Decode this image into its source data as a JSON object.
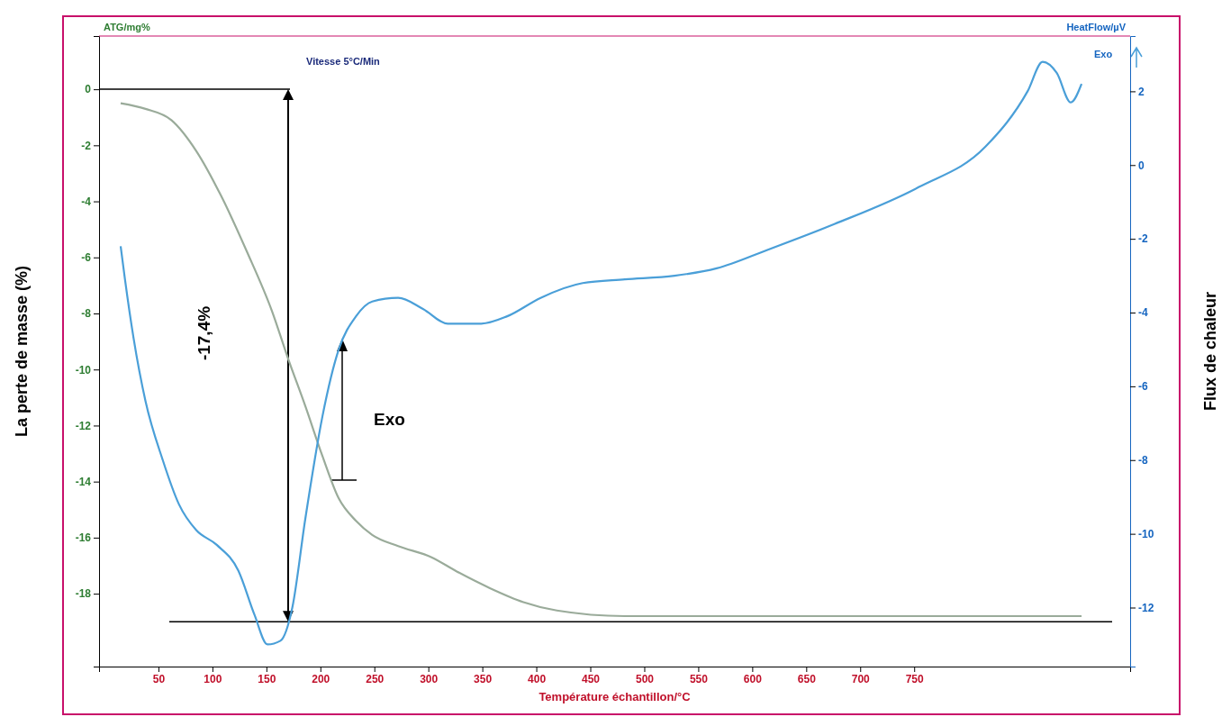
{
  "chart_data": {
    "type": "line",
    "xlabel": "Température échantillon/°C",
    "ylabel": "La perte de masse (%)",
    "y2label": "Flux de chaleur",
    "annotations": [
      "ATG/mg%",
      "HeatFlow/µV",
      "Vitesse 5°C/Min",
      "-17,4%",
      "Exo",
      "Exo"
    ],
    "xlim": [
      -5,
      950
    ],
    "xticks": [
      50,
      100,
      150,
      200,
      250,
      300,
      350,
      400,
      450,
      500,
      550,
      600,
      650,
      700,
      750
    ],
    "ylim": [
      -20.6,
      1.9
    ],
    "yticks": [
      0,
      -2,
      -4,
      -6,
      -8,
      -10,
      -12,
      -14,
      -16,
      -18
    ],
    "y2lim": [
      -13.6,
      3.5
    ],
    "y2ticks": [
      2,
      0,
      -2,
      -4,
      -6,
      -8,
      -10,
      -12
    ],
    "grid": false,
    "ref_lines": [
      {
        "axis": "y",
        "value": 0,
        "color": "#000000"
      },
      {
        "axis": "y",
        "value": -19,
        "color": "#000000"
      }
    ],
    "series": [
      {
        "color": "#9aab9a",
        "x": [
          15,
          38,
          62,
          85,
          108,
          132,
          155,
          170,
          186,
          202,
          217,
          233,
          248,
          272,
          303,
          326,
          357,
          388,
          419,
          482,
          637,
          905
        ],
        "values": [
          -0.5,
          -0.7,
          -1.1,
          -2.2,
          -3.8,
          -5.8,
          -7.9,
          -9.6,
          -11.3,
          -13.1,
          -14.6,
          -15.4,
          -15.9,
          -16.3,
          -16.7,
          -17.2,
          -17.8,
          -18.3,
          -18.6,
          -18.8,
          -18.8,
          -18.8
        ]
      },
      {
        "color": "#4a9fd8",
        "axis": "y2",
        "x": [
          15,
          19,
          27,
          38,
          54,
          69,
          85,
          104,
          124,
          139,
          151,
          163,
          174,
          186,
          202,
          217,
          233,
          248,
          272,
          295,
          318,
          349,
          373,
          404,
          443,
          482,
          528,
          567,
          614,
          676,
          754,
          816,
          855,
          869,
          882,
          895,
          905
        ],
        "values": [
          -2.2,
          -3.1,
          -4.7,
          -6.4,
          -8.0,
          -9.2,
          -9.9,
          -10.3,
          -11.0,
          -12.2,
          -13.0,
          -12.9,
          -12.0,
          -9.6,
          -6.8,
          -5.0,
          -4.1,
          -3.7,
          -3.6,
          -3.9,
          -4.3,
          -4.3,
          -4.1,
          -3.6,
          -3.2,
          -3.1,
          -3.0,
          -2.8,
          -2.3,
          -1.6,
          -0.6,
          0.5,
          2.0,
          2.8,
          2.5,
          1.7,
          2.2
        ]
      }
    ]
  }
}
